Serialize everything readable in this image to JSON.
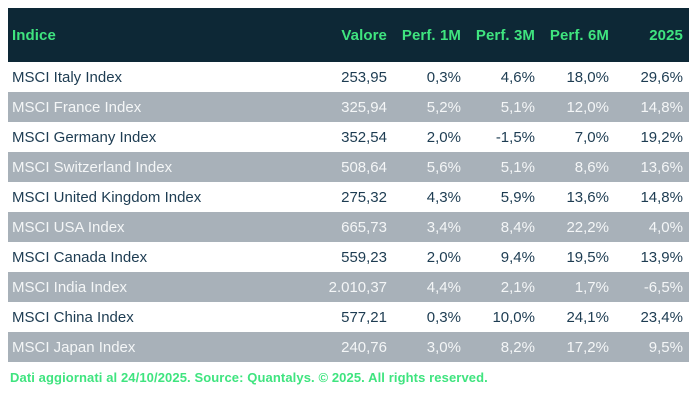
{
  "chart_data": {
    "type": "table",
    "title": "MSCI index performance table",
    "columns": [
      "Indice",
      "Valore",
      "Perf. 1M",
      "Perf. 3M",
      "Perf. 6M",
      "2025"
    ],
    "rows": [
      [
        "MSCI Italy Index",
        "253,95",
        "0,3%",
        "4,6%",
        "18,0%",
        "29,6%"
      ],
      [
        "MSCI France Index",
        "325,94",
        "5,2%",
        "5,1%",
        "12,0%",
        "14,8%"
      ],
      [
        "MSCI Germany Index",
        "352,54",
        "2,0%",
        "-1,5%",
        "7,0%",
        "19,2%"
      ],
      [
        "MSCI Switzerland Index",
        "508,64",
        "5,6%",
        "5,1%",
        "8,6%",
        "13,6%"
      ],
      [
        "MSCI United Kingdom Index",
        "275,32",
        "4,3%",
        "5,9%",
        "13,6%",
        "14,8%"
      ],
      [
        "MSCI USA Index",
        "665,73",
        "3,4%",
        "8,4%",
        "22,2%",
        "4,0%"
      ],
      [
        "MSCI Canada Index",
        "559,23",
        "2,0%",
        "9,4%",
        "19,5%",
        "13,9%"
      ],
      [
        "MSCI India Index",
        "2.010,37",
        "4,4%",
        "2,1%",
        "1,7%",
        "-6,5%"
      ],
      [
        "MSCI China Index",
        "577,21",
        "0,3%",
        "10,0%",
        "24,1%",
        "23,4%"
      ],
      [
        "MSCI Japan Index",
        "240,76",
        "3,0%",
        "8,2%",
        "17,2%",
        "9,5%"
      ]
    ]
  },
  "footer": {
    "text": "Dati aggiornati al 24/10/2025. Source: Quantalys. © 2025. All rights reserved."
  },
  "colors": {
    "header_bg": "#0D2836",
    "accent_green": "#3FE47F",
    "row_alt_bg": "#A8B1B9",
    "row_text": "#1D3C52",
    "row_alt_text": "#F4F6F7",
    "page_bg": "#FFFFFF"
  }
}
